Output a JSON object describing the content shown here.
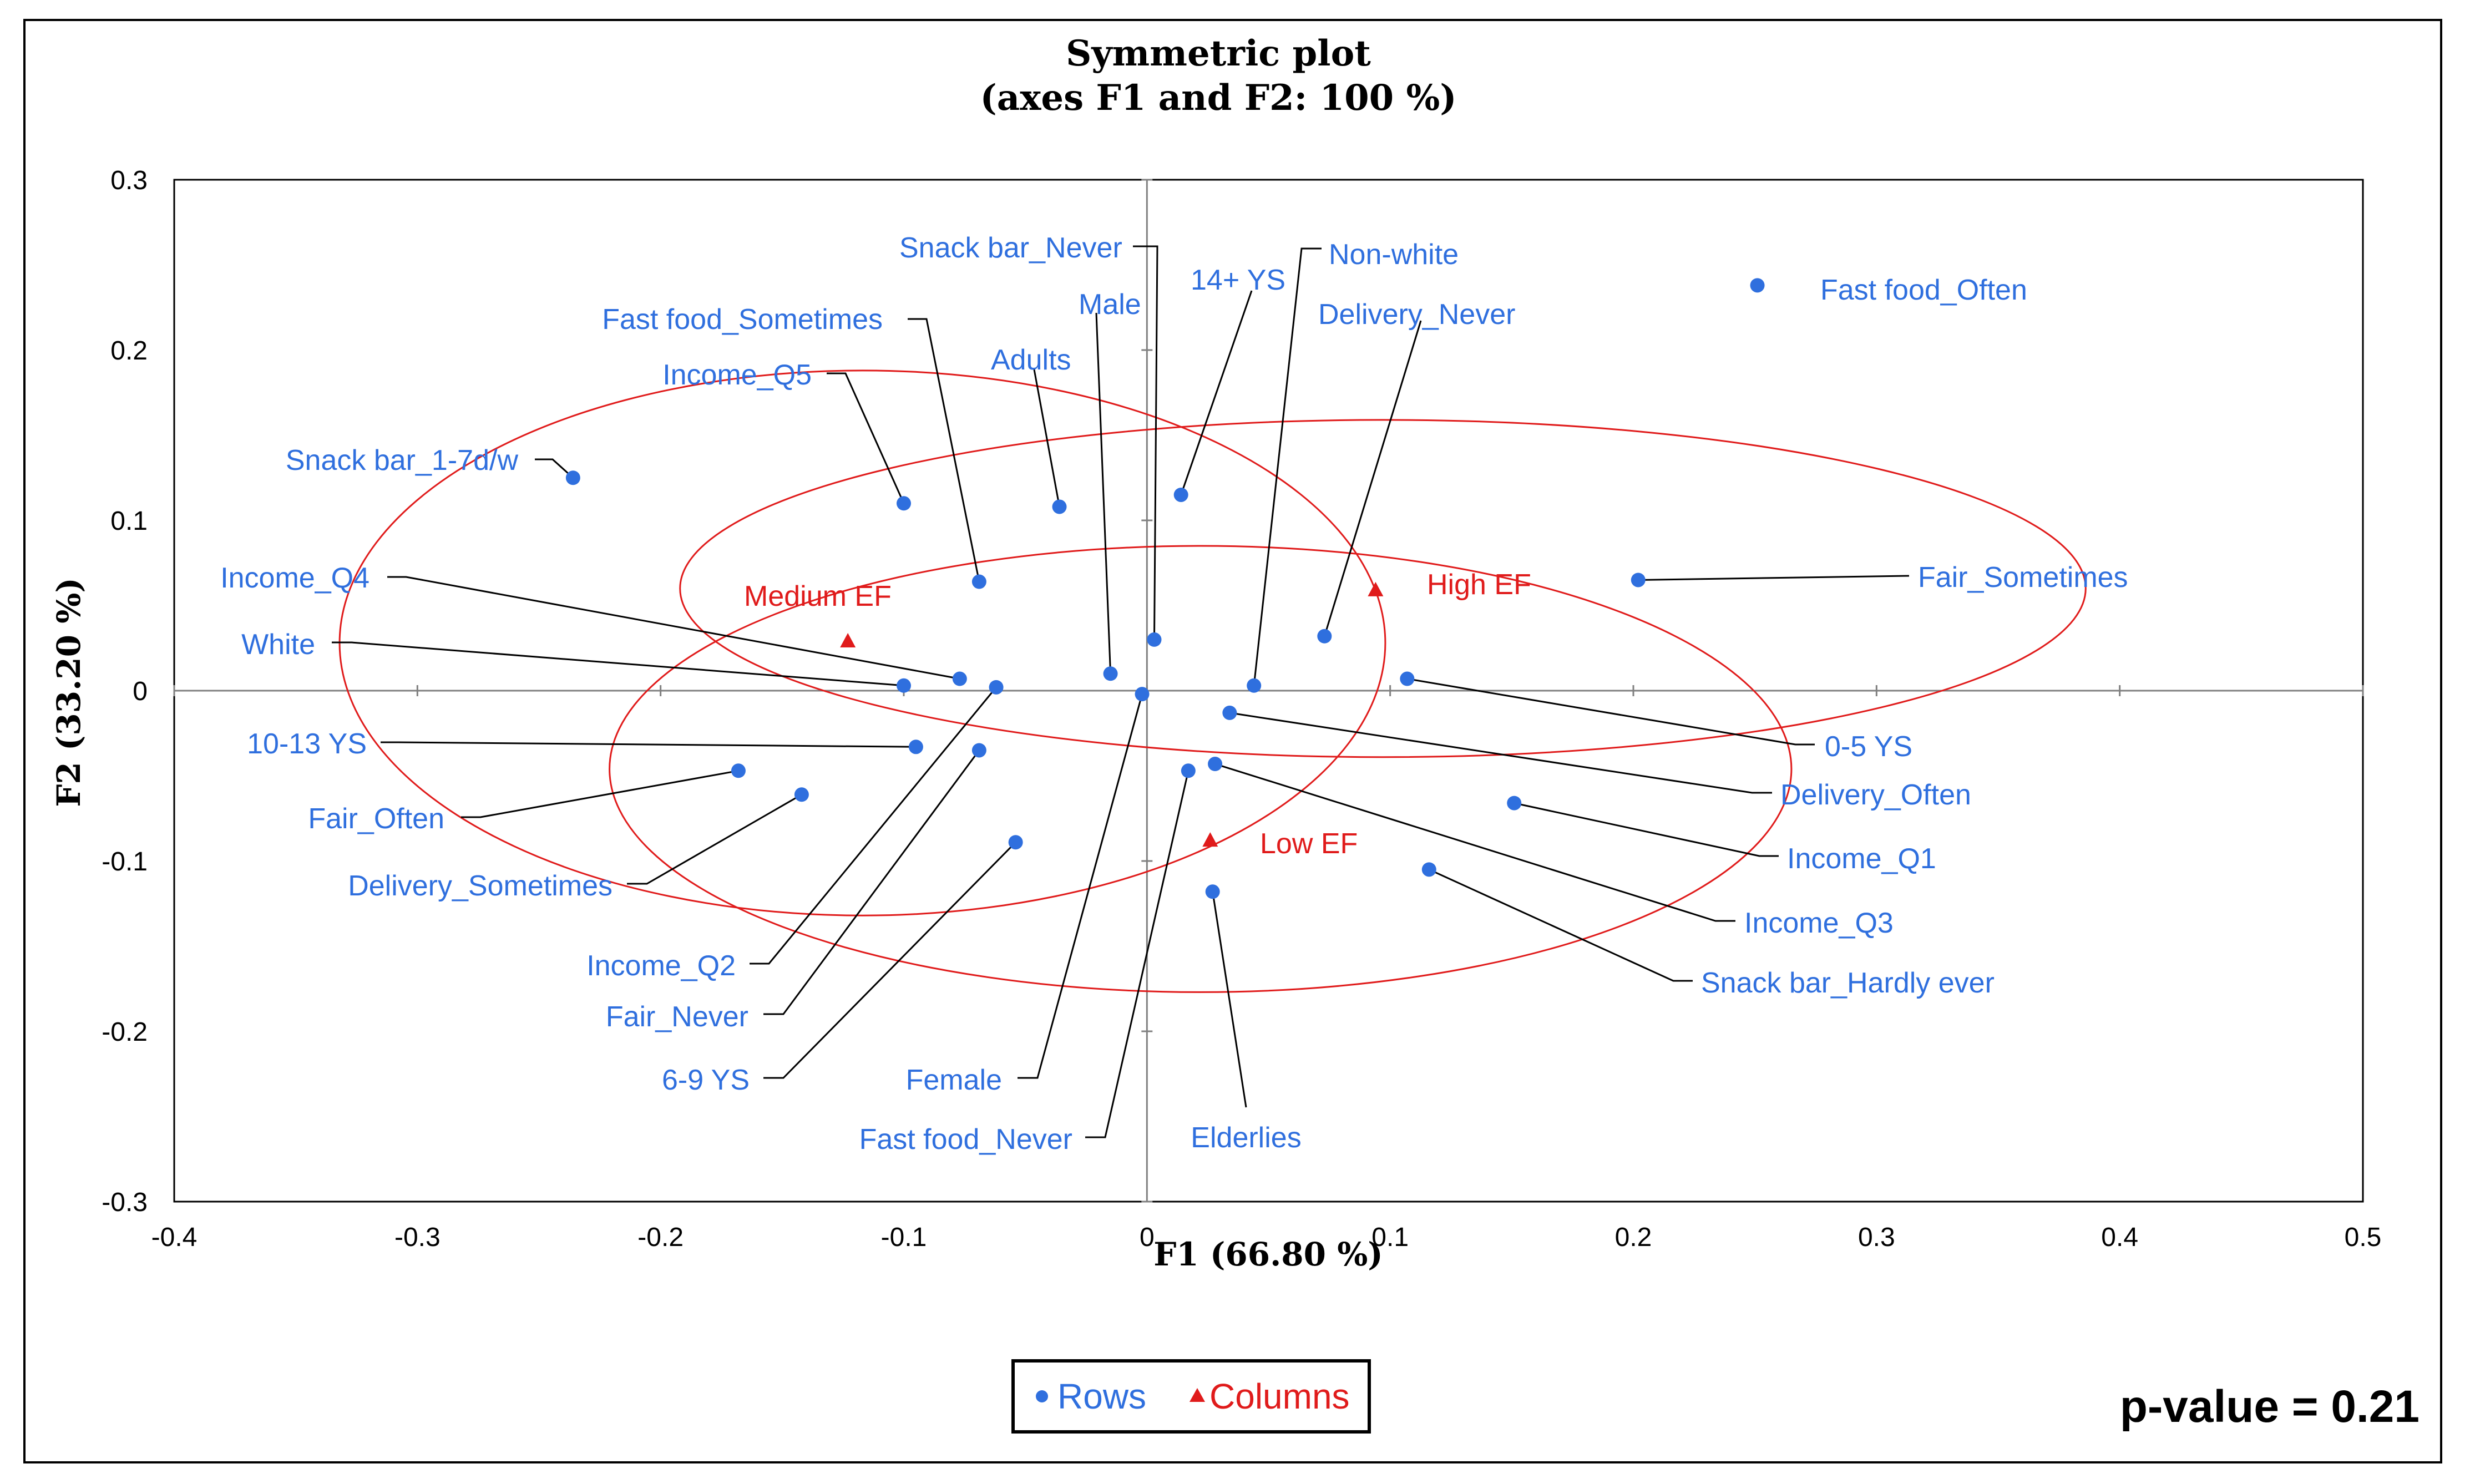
{
  "chart_data": {
    "type": "scatter",
    "title": "Symmetric plot",
    "subtitle": "(axes F1 and F2: 100 %)",
    "xlabel": "F1 (66.80 %)",
    "ylabel": "F2 (33.20 %)",
    "xlim": [
      -0.4,
      0.5
    ],
    "ylim": [
      -0.3,
      0.3
    ],
    "xticks": [
      "-0.4",
      "-0.3",
      "-0.2",
      "-0.1",
      "0",
      "0.1",
      "0.2",
      "0.3",
      "0.4",
      "0.5"
    ],
    "yticks": [
      "-0.3",
      "-0.2",
      "-0.1",
      "0",
      "0.1",
      "0.2",
      "0.3"
    ],
    "series": [
      {
        "name": "Rows",
        "color": "#2f6fde",
        "points": [
          {
            "label": "Snack bar_Never",
            "x": 0.003,
            "y": 0.03
          },
          {
            "label": "Non-white",
            "x": 0.044,
            "y": 0.003
          },
          {
            "label": "14+ YS",
            "x": 0.014,
            "y": 0.115
          },
          {
            "label": "Fast food_Often",
            "x": 0.251,
            "y": 0.238
          },
          {
            "label": "Male",
            "x": -0.015,
            "y": 0.01
          },
          {
            "label": "Delivery_Never",
            "x": 0.073,
            "y": 0.032
          },
          {
            "label": "Fast food_Sometimes",
            "x": -0.069,
            "y": 0.064
          },
          {
            "label": "Adults",
            "x": -0.036,
            "y": 0.108
          },
          {
            "label": "Income_Q5",
            "x": -0.1,
            "y": 0.11
          },
          {
            "label": "Snack bar_1-7d/w",
            "x": -0.236,
            "y": 0.125
          },
          {
            "label": "Fair_Sometimes",
            "x": 0.202,
            "y": 0.065
          },
          {
            "label": "Income_Q4",
            "x": -0.077,
            "y": 0.007
          },
          {
            "label": "White",
            "x": -0.1,
            "y": 0.003
          },
          {
            "label": "0-5 YS",
            "x": 0.107,
            "y": 0.007
          },
          {
            "label": "Delivery_Often",
            "x": 0.034,
            "y": -0.013
          },
          {
            "label": "10-13 YS",
            "x": -0.095,
            "y": -0.033
          },
          {
            "label": "Income_Q1",
            "x": 0.151,
            "y": -0.066
          },
          {
            "label": "Fair_Often",
            "x": -0.168,
            "y": -0.047
          },
          {
            "label": "Delivery_Sometimes",
            "x": -0.142,
            "y": -0.061
          },
          {
            "label": "Income_Q3",
            "x": 0.028,
            "y": -0.043
          },
          {
            "label": "Snack bar_Hardly ever",
            "x": 0.116,
            "y": -0.105
          },
          {
            "label": "Income_Q2",
            "x": -0.062,
            "y": 0.002
          },
          {
            "label": "Fair_Never",
            "x": -0.069,
            "y": -0.035
          },
          {
            "label": "6-9 YS",
            "x": -0.054,
            "y": -0.089
          },
          {
            "label": "Female",
            "x": -0.002,
            "y": -0.002
          },
          {
            "label": "Fast food_Never",
            "x": 0.017,
            "y": -0.047
          },
          {
            "label": "Elderlies",
            "x": 0.027,
            "y": -0.118
          }
        ]
      },
      {
        "name": "Columns",
        "color": "#e01b1b",
        "points": [
          {
            "label": "Medium EF",
            "x": -0.123,
            "y": 0.029
          },
          {
            "label": "High EF",
            "x": 0.094,
            "y": 0.059
          },
          {
            "label": "Low EF",
            "x": 0.026,
            "y": -0.088
          }
        ]
      }
    ],
    "ellipses": [
      {
        "around": "Medium EF",
        "cx": -0.117,
        "cy": 0.028,
        "rx": 0.215,
        "ry": 0.16
      },
      {
        "around": "High EF",
        "cx": 0.097,
        "cy": 0.06,
        "rx": 0.289,
        "ry": 0.099
      },
      {
        "around": "Low EF",
        "cx": 0.022,
        "cy": -0.046,
        "rx": 0.243,
        "ry": 0.131
      }
    ],
    "legend": [
      "Rows",
      "Columns"
    ],
    "annotation": "p-value = 0.21"
  }
}
